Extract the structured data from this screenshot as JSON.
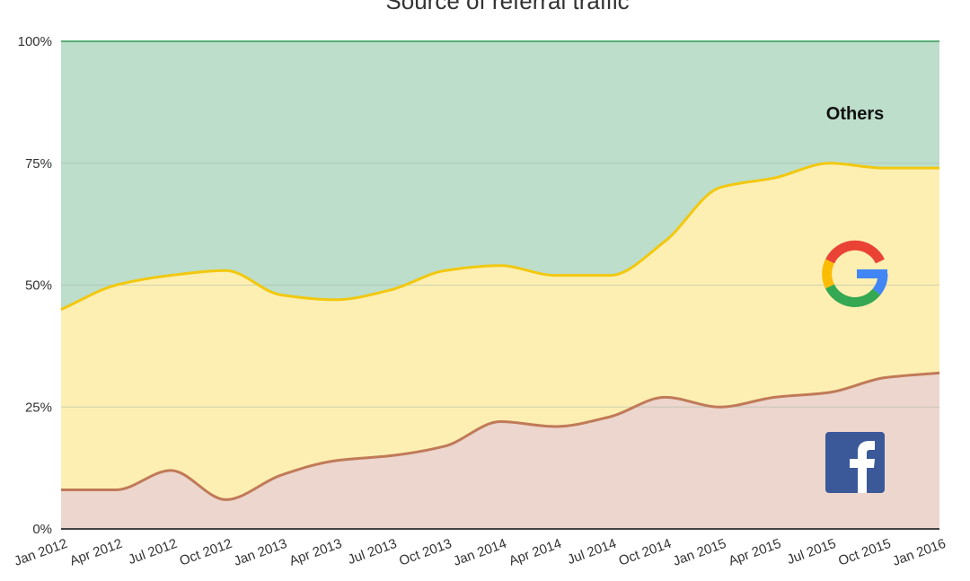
{
  "chart_data": {
    "type": "area",
    "title": "Source of referral traffic",
    "xlabel": "",
    "ylabel": "",
    "ylim": [
      0,
      100
    ],
    "y_ticks": [
      "0%",
      "25%",
      "50%",
      "75%",
      "100%"
    ],
    "y_tick_values": [
      0,
      25,
      50,
      75,
      100
    ],
    "categories": [
      "Jan 2012",
      "Apr 2012",
      "Jul 2012",
      "Oct 2012",
      "Jan 2013",
      "Apr 2013",
      "Jul 2013",
      "Oct 2013",
      "Jan 2014",
      "Apr 2014",
      "Jul 2014",
      "Oct 2014",
      "Jan 2015",
      "Apr 2015",
      "Jul 2015",
      "Oct 2015",
      "Jan 2016"
    ],
    "stacked_percent": true,
    "grid": true,
    "series": [
      {
        "label": "Others",
        "color": "#bcdecb",
        "line_color": "#5aac7a",
        "cumulative_values": [
          100,
          100,
          100,
          100,
          100,
          100,
          100,
          100,
          100,
          100,
          100,
          100,
          100,
          100,
          100,
          100,
          100
        ]
      },
      {
        "icon": "google-logo-icon",
        "color": "#fdefb2",
        "line_color": "#f2c80f",
        "cumulative_values": [
          45,
          50,
          52,
          53,
          48,
          47,
          49,
          53,
          54,
          52,
          52,
          59,
          70,
          72,
          75,
          74,
          74
        ]
      },
      {
        "icon": "facebook-logo-icon",
        "color": "#ecd6cd",
        "line_color": "#c07a58",
        "cumulative_values": [
          8,
          8,
          12,
          6,
          11,
          14,
          15,
          17,
          22,
          21,
          23,
          27,
          25,
          27,
          28,
          31,
          32
        ]
      }
    ],
    "annotations": {
      "others_label": "Others"
    }
  }
}
